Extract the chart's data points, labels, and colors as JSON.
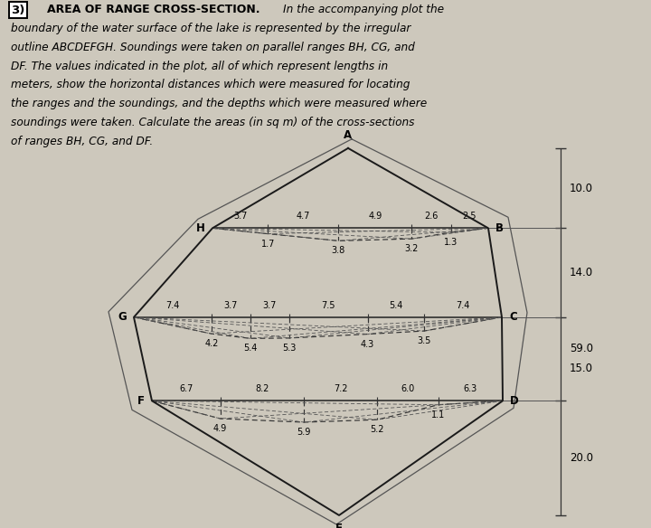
{
  "bg_color": "#cdc8bc",
  "text_color": "#111111",
  "title_num": "3)",
  "title_bold": "AREA OF RANGE CROSS-SECTION.",
  "para_lines": [
    "3)  AREA OF RANGE  CROSS-SECTION.  In the accompanying plot the",
    "boundary of the water surface of the lake is represented by the irregular",
    "outline ABCDEFGH. Soundings were taken on parallel ranges BH, CG, and",
    "DF. The values indicated in the plot, all of which represent lengths in",
    "meters, show the horizontal distances which were measured for locating",
    "the ranges and the soundings, and the depths which were measured where",
    "soundings were taken. Calculate the areas (in sq m) of the cross-sections",
    "of ranges BH, CG, and DF."
  ],
  "BH_horiz": [
    3.7,
    4.7,
    4.9,
    2.6,
    2.5
  ],
  "BH_depths": [
    1.7,
    3.8,
    3.2,
    1.3
  ],
  "CG_horiz": [
    7.4,
    3.7,
    3.7,
    7.5,
    5.4,
    7.4
  ],
  "CG_depths": [
    4.2,
    5.4,
    5.3,
    4.3,
    3.5
  ],
  "DF_horiz": [
    6.7,
    8.2,
    7.2,
    6.0,
    6.3
  ],
  "DF_depths": [
    4.9,
    5.9,
    5.2,
    1.1
  ],
  "dim_labels": [
    "10.0",
    "14.0",
    "59.0",
    "15.0",
    "20.0"
  ],
  "point_labels": [
    "A",
    "B",
    "C",
    "D",
    "E",
    "F",
    "G",
    "H"
  ]
}
